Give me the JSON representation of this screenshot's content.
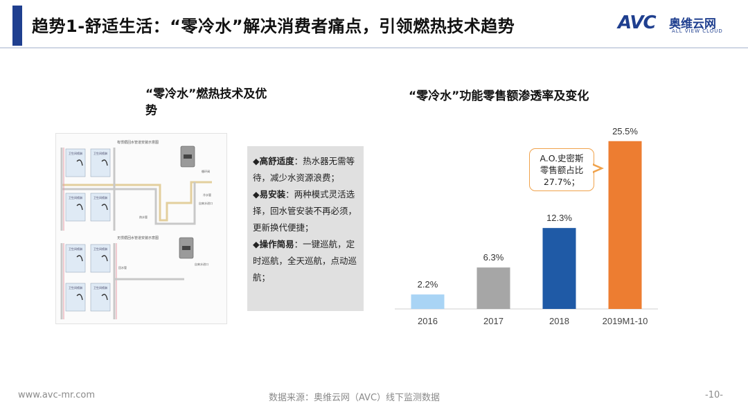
{
  "header": {
    "title": "趋势1-舒适生活：“零冷水”解决消费者痛点，引领燃热技术趋势",
    "logo_mark": "AVC",
    "logo_cn": "奥维云网",
    "logo_en": "ALL VIEW CLOUD"
  },
  "left": {
    "title": "“零冷水”燃热技术及优势",
    "diagram": {
      "top_title": "有惯循回水管道安装示意图",
      "bottom_title": "无惯循回水管道安装示意图",
      "room_label": "卫生间喷淋",
      "labels": [
        "循环阀",
        "冷水管",
        "自来水进口",
        "热水管",
        "回水管"
      ]
    },
    "advantages": [
      {
        "key": "高舒适度",
        "text": "：热水器无需等待，减少水资源浪费；"
      },
      {
        "key": "易安装",
        "text": "：两种模式灵活选择，回水管安装不再必须，更新换代便捷；"
      },
      {
        "key": "操作简易",
        "text": "：一键巡航，定时巡航，全天巡航，点动巡航；"
      }
    ]
  },
  "chart_data": {
    "type": "bar",
    "title": "“零冷水”功能零售额渗透率及变化",
    "categories": [
      "2016",
      "2017",
      "2018",
      "2019M1-10"
    ],
    "values": [
      2.2,
      6.3,
      12.3,
      25.5
    ],
    "value_labels": [
      "2.2%",
      "6.3%",
      "12.3%",
      "25.5%"
    ],
    "colors": [
      "#a9d4f5",
      "#a6a6a6",
      "#1f5aa6",
      "#ed7d31"
    ],
    "ylim": [
      0,
      28
    ],
    "grid": false,
    "annotation": {
      "lines": [
        "A.O.史密斯",
        "零售额占比",
        "27.7%；"
      ],
      "target": "2019M1-10"
    }
  },
  "footer": {
    "url": "www.avc-mr.com",
    "source": "数据来源：奥维云网（AVC）线下监测数据",
    "page": "-10-"
  }
}
